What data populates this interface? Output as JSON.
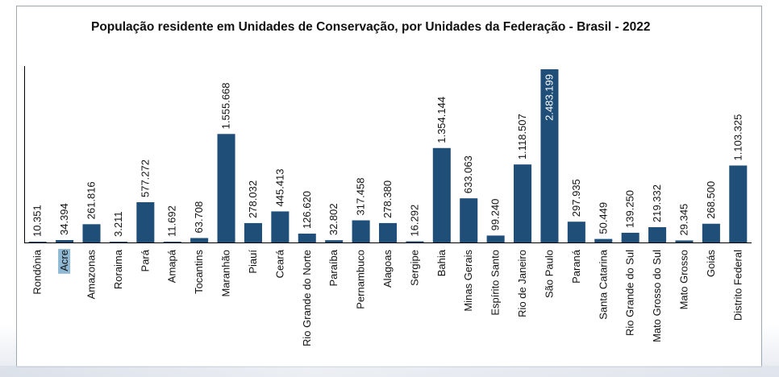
{
  "chart_data": {
    "type": "bar",
    "title": "População residente em Unidades de Conservação, por Unidades da Federação - Brasil - 2022",
    "xlabel": "",
    "ylabel": "",
    "ylim": [
      0,
      2483199
    ],
    "grid": false,
    "legend": "none",
    "bar_color": "#1f4e79",
    "highlight_color": "#8eb8d4",
    "highlighted_category": "Acre",
    "categories": [
      "Rondônia",
      "Acre",
      "Amazonas",
      "Roraima",
      "Pará",
      "Amapá",
      "Tocantins",
      "Maranhão",
      "Piauí",
      "Ceará",
      "Rio Grande do Norte",
      "Paraíba",
      "Pernambuco",
      "Alagoas",
      "Sergipe",
      "Bahia",
      "Minas Gerais",
      "Espírito Santo",
      "Rio de Janeiro",
      "São Paulo",
      "Paraná",
      "Santa Catarina",
      "Rio Grande do Sul",
      "Mato Grosso do Sul",
      "Mato Grosso",
      "Goiás",
      "Distrito Federal"
    ],
    "values": [
      10351,
      34394,
      261816,
      3211,
      577272,
      11692,
      63708,
      1555668,
      278032,
      445413,
      126620,
      32802,
      317458,
      278380,
      16292,
      1354144,
      633063,
      99240,
      1118507,
      2483199,
      297935,
      50449,
      139250,
      219332,
      29345,
      268500,
      1103325
    ],
    "value_labels": [
      "10.351",
      "34.394",
      "261.816",
      "3.211",
      "577.272",
      "11.692",
      "63.708",
      "1.555.668",
      "278.032",
      "445.413",
      "126.620",
      "32.802",
      "317.458",
      "278.380",
      "16.292",
      "1.354.144",
      "633.063",
      "99.240",
      "1.118.507",
      "2.483.199",
      "297.935",
      "50.449",
      "139.250",
      "219.332",
      "29.345",
      "268.500",
      "1.103.325"
    ]
  }
}
